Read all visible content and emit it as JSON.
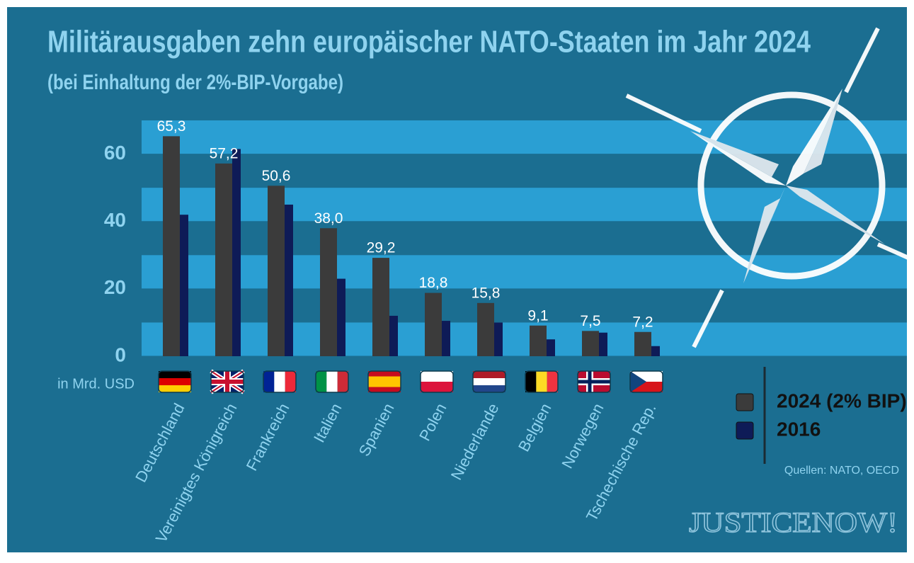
{
  "chart_data": {
    "type": "bar",
    "title": "Militärausgaben zehn europäischer NATO-Staaten im Jahr 2024",
    "subtitle": "(bei Einhaltung der 2%-BIP-Vorgabe)",
    "y_label": "in Mrd. USD",
    "categories": [
      "Deutschland",
      "Vereinigtes Königreich",
      "Frankreich",
      "Italien",
      "Spanien",
      "Polen",
      "Niederlande",
      "Belgien",
      "Norwegen",
      "Tschechische Rep."
    ],
    "series": [
      {
        "name": "2024 (2% BIP)",
        "color": "#3b3b3b",
        "values": [
          65.3,
          57.2,
          50.6,
          38.0,
          29.2,
          18.8,
          15.8,
          9.1,
          7.5,
          7.2
        ],
        "value_labels": [
          "65,3",
          "57,2",
          "50,6",
          "38,0",
          "29,2",
          "18,8",
          "15,8",
          "9,1",
          "7,5",
          "7,2"
        ]
      },
      {
        "name": "2016",
        "color": "#0e1b57",
        "values": [
          42,
          61.5,
          45,
          23,
          12,
          10.5,
          10,
          5,
          7,
          3
        ]
      }
    ],
    "ylim": [
      0,
      70
    ],
    "yticks": [
      0,
      20,
      40,
      60
    ],
    "grid": true,
    "source": "Quellen: NATO, OECD",
    "watermark": "JUSTICENOW!"
  }
}
